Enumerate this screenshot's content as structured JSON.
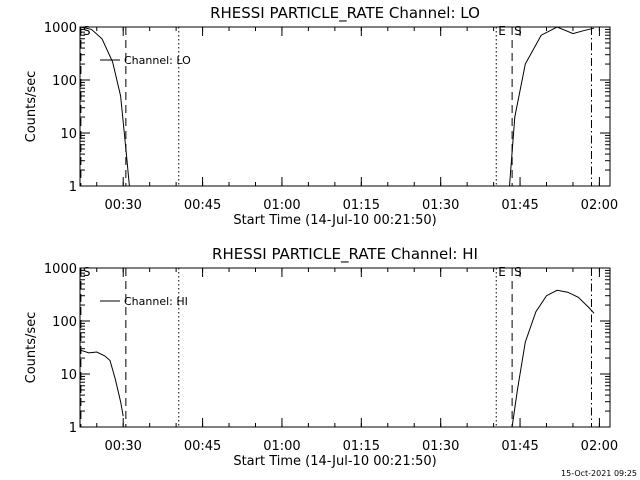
{
  "timestamp": "15-Oct-2021 09:25",
  "chart_data": [
    {
      "type": "line",
      "title": "RHESSI PARTICLE_RATE Channel: LO",
      "xlabel": "Start Time (14-Jul-10 00:21:50)",
      "ylabel": "Counts/sec",
      "yscale": "log",
      "ylim": [
        1,
        1000
      ],
      "xlim": [
        "00:21:50",
        "02:02:00"
      ],
      "xticks": [
        "00:30",
        "00:45",
        "01:00",
        "01:15",
        "01:30",
        "01:45",
        "02:00"
      ],
      "yticks": [
        "1",
        "10",
        "100",
        "1000"
      ],
      "legend": {
        "position": "top-left",
        "label": "Channel: LO"
      },
      "series": [
        {
          "name": "Channel: LO",
          "segments": [
            [
              [
                "00:22:00",
                1000
              ],
              [
                "00:24:00",
                900
              ],
              [
                "00:26:00",
                600
              ],
              [
                "00:28:00",
                220
              ],
              [
                "00:29:30",
                50
              ],
              [
                "00:30:30",
                5
              ],
              [
                "00:31:10",
                1
              ]
            ],
            [
              [
                "01:43:00",
                1
              ],
              [
                "01:44:00",
                20
              ],
              [
                "01:46:00",
                200
              ],
              [
                "01:49:00",
                700
              ],
              [
                "01:52:00",
                1000
              ],
              [
                "01:55:00",
                750
              ],
              [
                "01:57:00",
                850
              ],
              [
                "01:59:00",
                950
              ]
            ]
          ]
        }
      ],
      "markers": [
        {
          "label": "S",
          "time": "00:22:00",
          "style": "dashed"
        },
        {
          "label": "",
          "time": "00:30:30",
          "style": "dashed"
        },
        {
          "label": "",
          "time": "00:40:30",
          "style": "dotted"
        },
        {
          "label": "E",
          "time": "01:40:30",
          "style": "dotted"
        },
        {
          "label": "S",
          "time": "01:43:30",
          "style": "dashed"
        },
        {
          "label": "",
          "time": "01:58:30",
          "style": "dashdot"
        }
      ]
    },
    {
      "type": "line",
      "title": "RHESSI PARTICLE_RATE Channel: HI",
      "xlabel": "Start Time (14-Jul-10 00:21:50)",
      "ylabel": "Counts/sec",
      "yscale": "log",
      "ylim": [
        1,
        1000
      ],
      "xlim": [
        "00:21:50",
        "02:02:00"
      ],
      "xticks": [
        "00:30",
        "00:45",
        "01:00",
        "01:15",
        "01:30",
        "01:45",
        "02:00"
      ],
      "yticks": [
        "1",
        "10",
        "100",
        "1000"
      ],
      "legend": {
        "position": "top-left",
        "label": "Channel: HI"
      },
      "series": [
        {
          "name": "Channel: HI",
          "segments": [
            [
              [
                "00:22:00",
                28
              ],
              [
                "00:23:30",
                25
              ],
              [
                "00:25:00",
                26
              ],
              [
                "00:26:30",
                22
              ],
              [
                "00:27:30",
                18
              ],
              [
                "00:28:30",
                8
              ],
              [
                "00:29:30",
                3
              ],
              [
                "00:30:00",
                1.6
              ]
            ],
            [
              [
                "01:43:30",
                1
              ],
              [
                "01:44:30",
                5
              ],
              [
                "01:46:00",
                40
              ],
              [
                "01:48:00",
                150
              ],
              [
                "01:50:00",
                300
              ],
              [
                "01:52:00",
                380
              ],
              [
                "01:54:00",
                350
              ],
              [
                "01:56:00",
                280
              ],
              [
                "01:58:00",
                180
              ],
              [
                "01:59:00",
                140
              ]
            ]
          ]
        }
      ],
      "markers": [
        {
          "label": "S",
          "time": "00:22:00",
          "style": "dashed"
        },
        {
          "label": "",
          "time": "00:30:30",
          "style": "dashed"
        },
        {
          "label": "",
          "time": "00:40:30",
          "style": "dotted"
        },
        {
          "label": "E",
          "time": "01:40:30",
          "style": "dotted"
        },
        {
          "label": "S",
          "time": "01:43:30",
          "style": "dashed"
        },
        {
          "label": "",
          "time": "01:58:30",
          "style": "dashdot"
        }
      ]
    }
  ]
}
